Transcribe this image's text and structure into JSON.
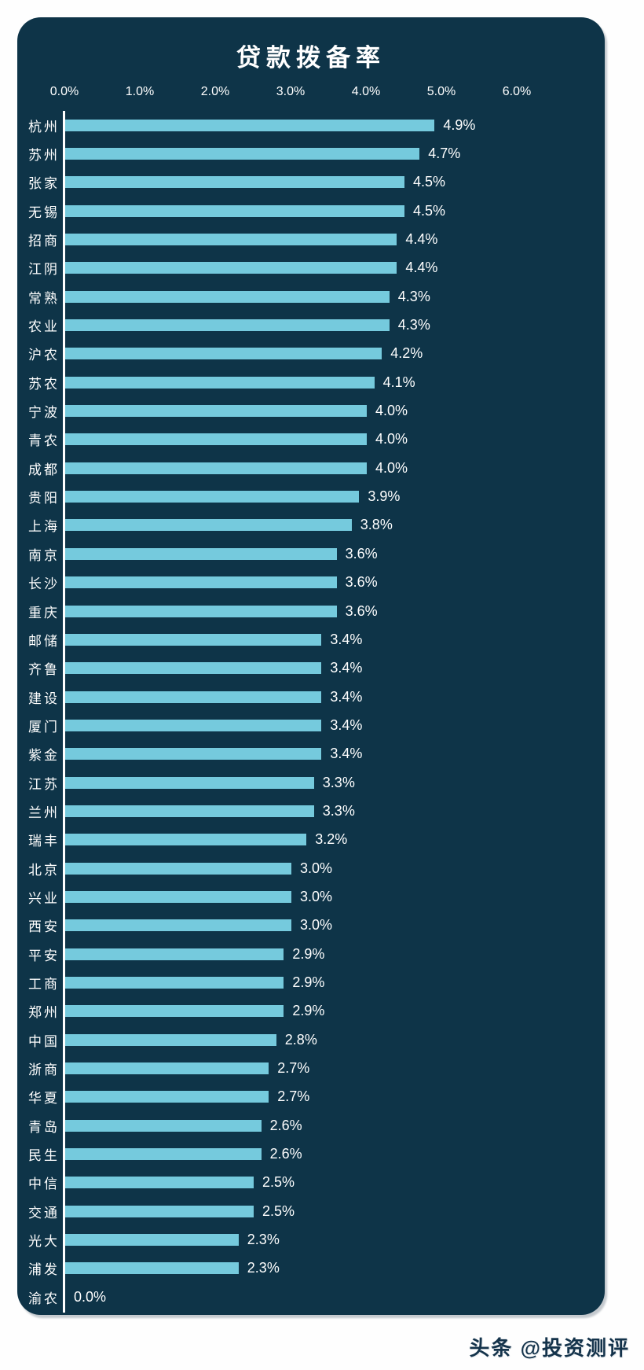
{
  "chart_data": {
    "type": "bar",
    "orientation": "horizontal",
    "title": "贷款拨备率",
    "xlabel": "",
    "ylabel": "",
    "x_axis": {
      "ticks": [
        "0.0%",
        "1.0%",
        "2.0%",
        "3.0%",
        "4.0%",
        "5.0%",
        "6.0%"
      ],
      "min": 0,
      "max": 6
    },
    "grid": false,
    "legend": false,
    "value_suffix": "%",
    "bar_color": "#75cadd",
    "card_background": "#0e3448",
    "text_color": "#ffffff",
    "categories": [
      "杭州",
      "苏州",
      "张家",
      "无锡",
      "招商",
      "江阴",
      "常熟",
      "农业",
      "沪农",
      "苏农",
      "宁波",
      "青农",
      "成都",
      "贵阳",
      "上海",
      "南京",
      "长沙",
      "重庆",
      "邮储",
      "齐鲁",
      "建设",
      "厦门",
      "紫金",
      "江苏",
      "兰州",
      "瑞丰",
      "北京",
      "兴业",
      "西安",
      "平安",
      "工商",
      "郑州",
      "中国",
      "浙商",
      "华夏",
      "青岛",
      "民生",
      "中信",
      "交通",
      "光大",
      "浦发",
      "渝农"
    ],
    "values": [
      4.9,
      4.7,
      4.5,
      4.5,
      4.4,
      4.4,
      4.3,
      4.3,
      4.2,
      4.1,
      4.0,
      4.0,
      4.0,
      3.9,
      3.8,
      3.6,
      3.6,
      3.6,
      3.4,
      3.4,
      3.4,
      3.4,
      3.4,
      3.3,
      3.3,
      3.2,
      3.0,
      3.0,
      3.0,
      2.9,
      2.9,
      2.9,
      2.8,
      2.7,
      2.7,
      2.6,
      2.6,
      2.5,
      2.5,
      2.3,
      2.3,
      0.0
    ]
  },
  "footer": {
    "credit": "头条 @投资测评"
  }
}
